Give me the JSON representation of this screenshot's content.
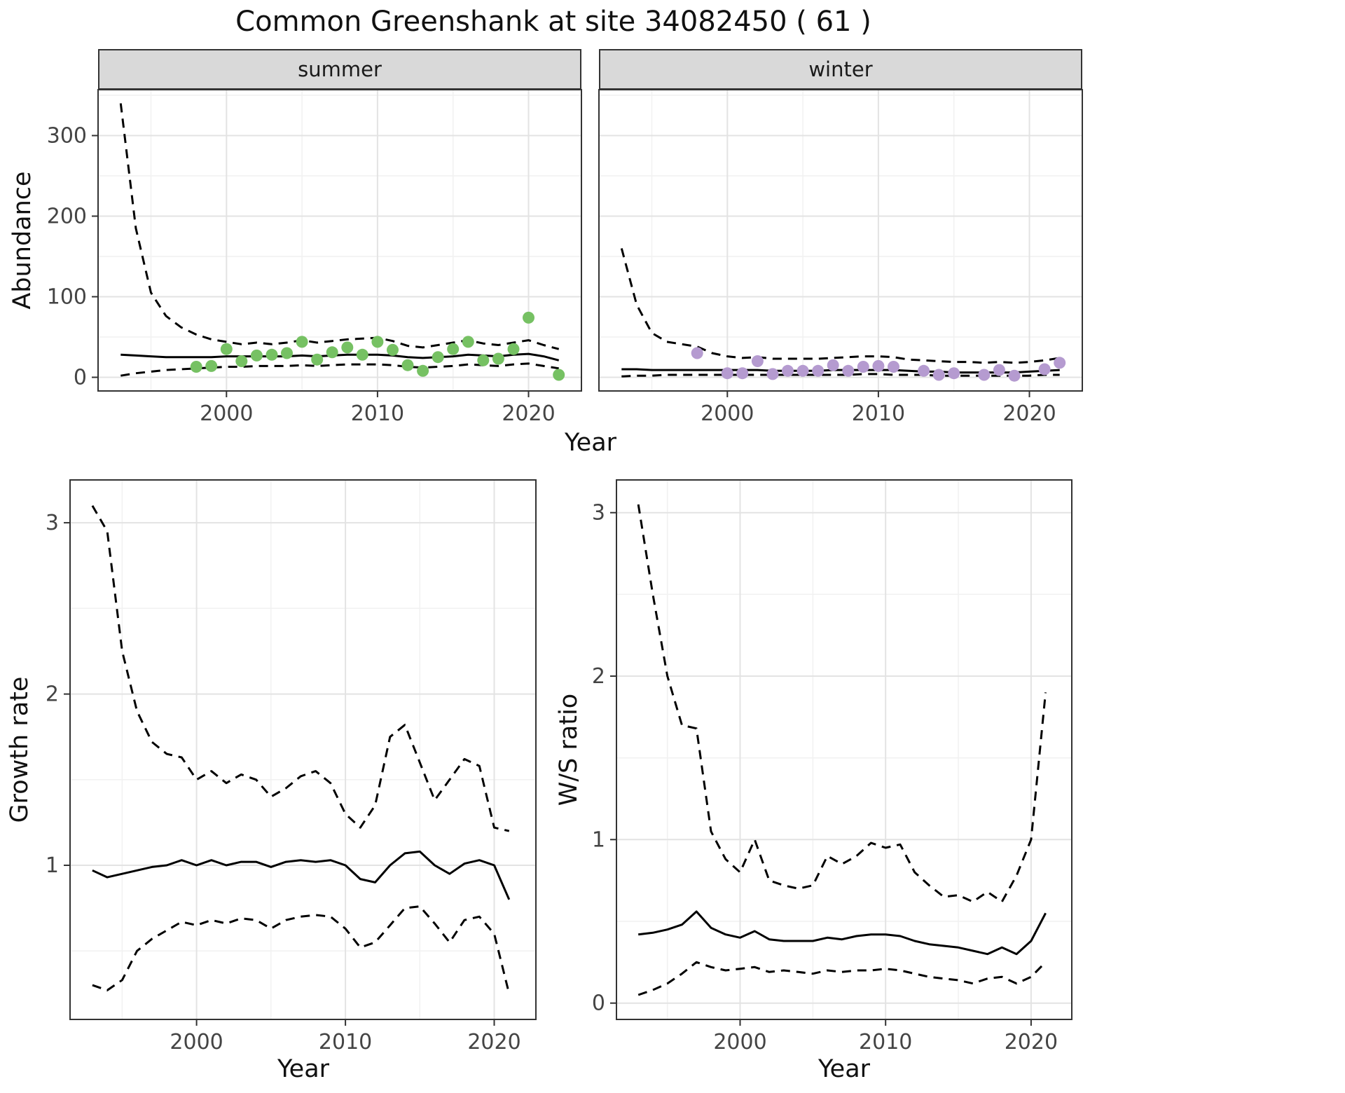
{
  "figure": {
    "title": "Common Greenshank at site 34082450 ( 61 )",
    "facets": {
      "summer": "summer",
      "winter": "winter"
    },
    "axes": {
      "abundance_ylabel": "Abundance",
      "top_xlabel": "Year",
      "growth_ylabel": "Growth rate",
      "growth_xlabel": "Year",
      "ws_ylabel": "W/S ratio",
      "ws_xlabel": "Year"
    }
  },
  "colors": {
    "background": "#FFFFFF",
    "summer_point": "#76C163",
    "winter_point": "#B59BD0",
    "line": "#000000",
    "grid_major": "#E3E3E3",
    "grid_minor": "#F1F1F1",
    "panel_border": "#333333",
    "strip_bg": "#D9D9D9",
    "tick_label": "#444444"
  },
  "chart_data": [
    {
      "id": "abundance-summer",
      "type": "scatter",
      "facet": "summer",
      "xlabel": "Year",
      "ylabel": "Abundance",
      "xlim": [
        1991.5,
        2023.5
      ],
      "ylim": [
        -17,
        357
      ],
      "xticks": [
        2000,
        2010,
        2020
      ],
      "xminor": [
        1995,
        2005,
        2015
      ],
      "yticks": [
        0,
        100,
        200,
        300
      ],
      "yminor": [
        50,
        150,
        250,
        350
      ],
      "grid": true,
      "legend": "none",
      "series": [
        {
          "name": "upper-ci",
          "style": "dashed",
          "x": [
            1993,
            1994,
            1995,
            1996,
            1997,
            1998,
            1999,
            2000,
            2001,
            2002,
            2003,
            2004,
            2005,
            2006,
            2007,
            2008,
            2009,
            2010,
            2011,
            2012,
            2013,
            2014,
            2015,
            2016,
            2017,
            2018,
            2019,
            2020,
            2021,
            2022
          ],
          "y": [
            340,
            185,
            105,
            76,
            62,
            53,
            47,
            44,
            41,
            43,
            41,
            43,
            46,
            43,
            45,
            47,
            48,
            49,
            45,
            39,
            37,
            40,
            43,
            46,
            42,
            40,
            43,
            46,
            40,
            35
          ]
        },
        {
          "name": "fit",
          "style": "solid",
          "x": [
            1993,
            1994,
            1995,
            1996,
            1997,
            1998,
            1999,
            2000,
            2001,
            2002,
            2003,
            2004,
            2005,
            2006,
            2007,
            2008,
            2009,
            2010,
            2011,
            2012,
            2013,
            2014,
            2015,
            2016,
            2017,
            2018,
            2019,
            2020,
            2021,
            2022
          ],
          "y": [
            28,
            27,
            26,
            25,
            25,
            25,
            25,
            26,
            26,
            26,
            26,
            26,
            27,
            26,
            27,
            28,
            28,
            28,
            27,
            25,
            24,
            25,
            26,
            28,
            27,
            26,
            28,
            29,
            26,
            21
          ]
        },
        {
          "name": "lower-ci",
          "style": "dashed",
          "x": [
            1993,
            1994,
            1995,
            1996,
            1997,
            1998,
            1999,
            2000,
            2001,
            2002,
            2003,
            2004,
            2005,
            2006,
            2007,
            2008,
            2009,
            2010,
            2011,
            2012,
            2013,
            2014,
            2015,
            2016,
            2017,
            2018,
            2019,
            2020,
            2021,
            2022
          ],
          "y": [
            2,
            5,
            7,
            9,
            10,
            11,
            12,
            13,
            13,
            14,
            14,
            14,
            15,
            14,
            15,
            16,
            16,
            16,
            15,
            13,
            12,
            13,
            14,
            16,
            15,
            14,
            16,
            17,
            14,
            11
          ]
        }
      ],
      "points": {
        "name": "observed-summer",
        "color_key": "summer_point",
        "x": [
          1998,
          1999,
          2000,
          2001,
          2002,
          2003,
          2004,
          2005,
          2006,
          2007,
          2008,
          2009,
          2010,
          2011,
          2012,
          2013,
          2014,
          2015,
          2016,
          2017,
          2018,
          2019,
          2020,
          2022
        ],
        "y": [
          13,
          14,
          35,
          20,
          27,
          28,
          30,
          44,
          22,
          31,
          37,
          28,
          44,
          34,
          15,
          8,
          25,
          35,
          44,
          21,
          23,
          35,
          74,
          3
        ]
      }
    },
    {
      "id": "abundance-winter",
      "type": "scatter",
      "facet": "winter",
      "xlabel": "Year",
      "ylabel": "Abundance",
      "xlim": [
        1991.5,
        2023.5
      ],
      "ylim": [
        -17,
        357
      ],
      "xticks": [
        2000,
        2010,
        2020
      ],
      "xminor": [
        1995,
        2005,
        2015
      ],
      "yticks": [
        0,
        100,
        200,
        300
      ],
      "yminor": [
        50,
        150,
        250,
        350
      ],
      "grid": true,
      "legend": "none",
      "series": [
        {
          "name": "upper-ci",
          "style": "dashed",
          "x": [
            1993,
            1994,
            1995,
            1996,
            1997,
            1998,
            1999,
            2000,
            2001,
            2002,
            2003,
            2004,
            2005,
            2006,
            2007,
            2008,
            2009,
            2010,
            2011,
            2012,
            2013,
            2014,
            2015,
            2016,
            2017,
            2018,
            2019,
            2020,
            2021,
            2022
          ],
          "y": [
            160,
            90,
            55,
            44,
            41,
            38,
            30,
            26,
            24,
            25,
            23,
            23,
            23,
            23,
            24,
            25,
            26,
            26,
            25,
            22,
            21,
            20,
            19,
            19,
            18,
            19,
            18,
            19,
            21,
            24
          ]
        },
        {
          "name": "fit",
          "style": "solid",
          "x": [
            1993,
            1994,
            1995,
            1996,
            1997,
            1998,
            1999,
            2000,
            2001,
            2002,
            2003,
            2004,
            2005,
            2006,
            2007,
            2008,
            2009,
            2010,
            2011,
            2012,
            2013,
            2014,
            2015,
            2016,
            2017,
            2018,
            2019,
            2020,
            2021,
            2022
          ],
          "y": [
            10,
            10,
            9,
            9,
            9,
            9,
            9,
            9,
            9,
            9,
            8,
            8,
            8,
            8,
            9,
            9,
            9,
            9,
            9,
            8,
            7,
            7,
            6,
            6,
            6,
            6,
            6,
            7,
            8,
            9
          ]
        },
        {
          "name": "lower-ci",
          "style": "dashed",
          "x": [
            1993,
            1994,
            1995,
            1996,
            1997,
            1998,
            1999,
            2000,
            2001,
            2002,
            2003,
            2004,
            2005,
            2006,
            2007,
            2008,
            2009,
            2010,
            2011,
            2012,
            2013,
            2014,
            2015,
            2016,
            2017,
            2018,
            2019,
            2020,
            2021,
            2022
          ],
          "y": [
            1,
            2,
            2,
            3,
            3,
            3,
            3,
            3,
            3,
            3,
            3,
            3,
            3,
            3,
            3,
            3,
            4,
            4,
            3,
            3,
            3,
            2,
            2,
            2,
            2,
            2,
            2,
            2,
            3,
            3
          ]
        }
      ],
      "points": {
        "name": "observed-winter",
        "color_key": "winter_point",
        "x": [
          1998,
          2000,
          2001,
          2002,
          2003,
          2004,
          2005,
          2006,
          2007,
          2008,
          2009,
          2010,
          2011,
          2013,
          2014,
          2015,
          2017,
          2018,
          2019,
          2021,
          2022
        ],
        "y": [
          30,
          5,
          5,
          20,
          4,
          8,
          8,
          8,
          15,
          8,
          13,
          14,
          13,
          8,
          3,
          5,
          3,
          9,
          2,
          10,
          18
        ]
      }
    },
    {
      "id": "growth-rate",
      "type": "line",
      "xlabel": "Year",
      "ylabel": "Growth rate",
      "xlim": [
        1991.5,
        2022.8
      ],
      "ylim": [
        0.1,
        3.25
      ],
      "xticks": [
        2000,
        2010,
        2020
      ],
      "xminor": [
        1995,
        2005,
        2015
      ],
      "yticks": [
        1,
        2,
        3
      ],
      "yminor": [
        0.5,
        1.5,
        2.5
      ],
      "grid": true,
      "legend": "none",
      "series": [
        {
          "name": "upper-ci",
          "style": "dashed",
          "x": [
            1993,
            1994,
            1995,
            1996,
            1997,
            1998,
            1999,
            2000,
            2001,
            2002,
            2003,
            2004,
            2005,
            2006,
            2007,
            2008,
            2009,
            2010,
            2011,
            2012,
            2013,
            2014,
            2015,
            2016,
            2017,
            2018,
            2019,
            2020,
            2021
          ],
          "y": [
            3.1,
            2.95,
            2.25,
            1.9,
            1.72,
            1.65,
            1.63,
            1.5,
            1.55,
            1.48,
            1.53,
            1.5,
            1.4,
            1.45,
            1.52,
            1.55,
            1.48,
            1.3,
            1.22,
            1.35,
            1.75,
            1.82,
            1.6,
            1.38,
            1.5,
            1.62,
            1.58,
            1.22,
            1.2
          ]
        },
        {
          "name": "fit",
          "style": "solid",
          "x": [
            1993,
            1994,
            1995,
            1996,
            1997,
            1998,
            1999,
            2000,
            2001,
            2002,
            2003,
            2004,
            2005,
            2006,
            2007,
            2008,
            2009,
            2010,
            2011,
            2012,
            2013,
            2014,
            2015,
            2016,
            2017,
            2018,
            2019,
            2020,
            2021
          ],
          "y": [
            0.97,
            0.93,
            0.95,
            0.97,
            0.99,
            1.0,
            1.03,
            1.0,
            1.03,
            1.0,
            1.02,
            1.02,
            0.99,
            1.02,
            1.03,
            1.02,
            1.03,
            1.0,
            0.92,
            0.9,
            1.0,
            1.07,
            1.08,
            1.0,
            0.95,
            1.01,
            1.03,
            1.0,
            0.8
          ]
        },
        {
          "name": "lower-ci",
          "style": "dashed",
          "x": [
            1993,
            1994,
            1995,
            1996,
            1997,
            1998,
            1999,
            2000,
            2001,
            2002,
            2003,
            2004,
            2005,
            2006,
            2007,
            2008,
            2009,
            2010,
            2011,
            2012,
            2013,
            2014,
            2015,
            2016,
            2017,
            2018,
            2019,
            2020,
            2021
          ],
          "y": [
            0.3,
            0.27,
            0.33,
            0.5,
            0.57,
            0.62,
            0.67,
            0.65,
            0.68,
            0.66,
            0.69,
            0.68,
            0.63,
            0.68,
            0.7,
            0.71,
            0.7,
            0.63,
            0.52,
            0.55,
            0.65,
            0.75,
            0.76,
            0.66,
            0.55,
            0.68,
            0.7,
            0.6,
            0.25
          ]
        }
      ]
    },
    {
      "id": "ws-ratio",
      "type": "line",
      "xlabel": "Year",
      "ylabel": "W/S ratio",
      "xlim": [
        1991.5,
        2022.8
      ],
      "ylim": [
        -0.1,
        3.2
      ],
      "xticks": [
        2000,
        2010,
        2020
      ],
      "xminor": [
        1995,
        2005,
        2015
      ],
      "yticks": [
        0,
        1,
        2,
        3
      ],
      "yminor": [
        0.5,
        1.5,
        2.5
      ],
      "grid": true,
      "legend": "none",
      "series": [
        {
          "name": "upper-ci",
          "style": "dashed",
          "x": [
            1993,
            1994,
            1995,
            1996,
            1997,
            1998,
            1999,
            2000,
            2001,
            2002,
            2003,
            2004,
            2005,
            2006,
            2007,
            2008,
            2009,
            2010,
            2011,
            2012,
            2013,
            2014,
            2015,
            2016,
            2017,
            2018,
            2019,
            2020,
            2021
          ],
          "y": [
            3.05,
            2.5,
            2.0,
            1.7,
            1.68,
            1.05,
            0.88,
            0.8,
            1.0,
            0.75,
            0.72,
            0.7,
            0.72,
            0.9,
            0.85,
            0.9,
            0.98,
            0.95,
            0.97,
            0.8,
            0.72,
            0.65,
            0.66,
            0.62,
            0.68,
            0.62,
            0.78,
            1.0,
            1.9
          ]
        },
        {
          "name": "fit",
          "style": "solid",
          "x": [
            1993,
            1994,
            1995,
            1996,
            1997,
            1998,
            1999,
            2000,
            2001,
            2002,
            2003,
            2004,
            2005,
            2006,
            2007,
            2008,
            2009,
            2010,
            2011,
            2012,
            2013,
            2014,
            2015,
            2016,
            2017,
            2018,
            2019,
            2020,
            2021
          ],
          "y": [
            0.42,
            0.43,
            0.45,
            0.48,
            0.56,
            0.46,
            0.42,
            0.4,
            0.44,
            0.39,
            0.38,
            0.38,
            0.38,
            0.4,
            0.39,
            0.41,
            0.42,
            0.42,
            0.41,
            0.38,
            0.36,
            0.35,
            0.34,
            0.32,
            0.3,
            0.34,
            0.3,
            0.38,
            0.55
          ]
        },
        {
          "name": "lower-ci",
          "style": "dashed",
          "x": [
            1993,
            1994,
            1995,
            1996,
            1997,
            1998,
            1999,
            2000,
            2001,
            2002,
            2003,
            2004,
            2005,
            2006,
            2007,
            2008,
            2009,
            2010,
            2011,
            2012,
            2013,
            2014,
            2015,
            2016,
            2017,
            2018,
            2019,
            2020,
            2021
          ],
          "y": [
            0.05,
            0.08,
            0.12,
            0.18,
            0.25,
            0.22,
            0.2,
            0.21,
            0.22,
            0.19,
            0.2,
            0.19,
            0.18,
            0.2,
            0.19,
            0.2,
            0.2,
            0.21,
            0.2,
            0.18,
            0.16,
            0.15,
            0.14,
            0.12,
            0.15,
            0.16,
            0.12,
            0.16,
            0.25
          ]
        }
      ]
    }
  ]
}
